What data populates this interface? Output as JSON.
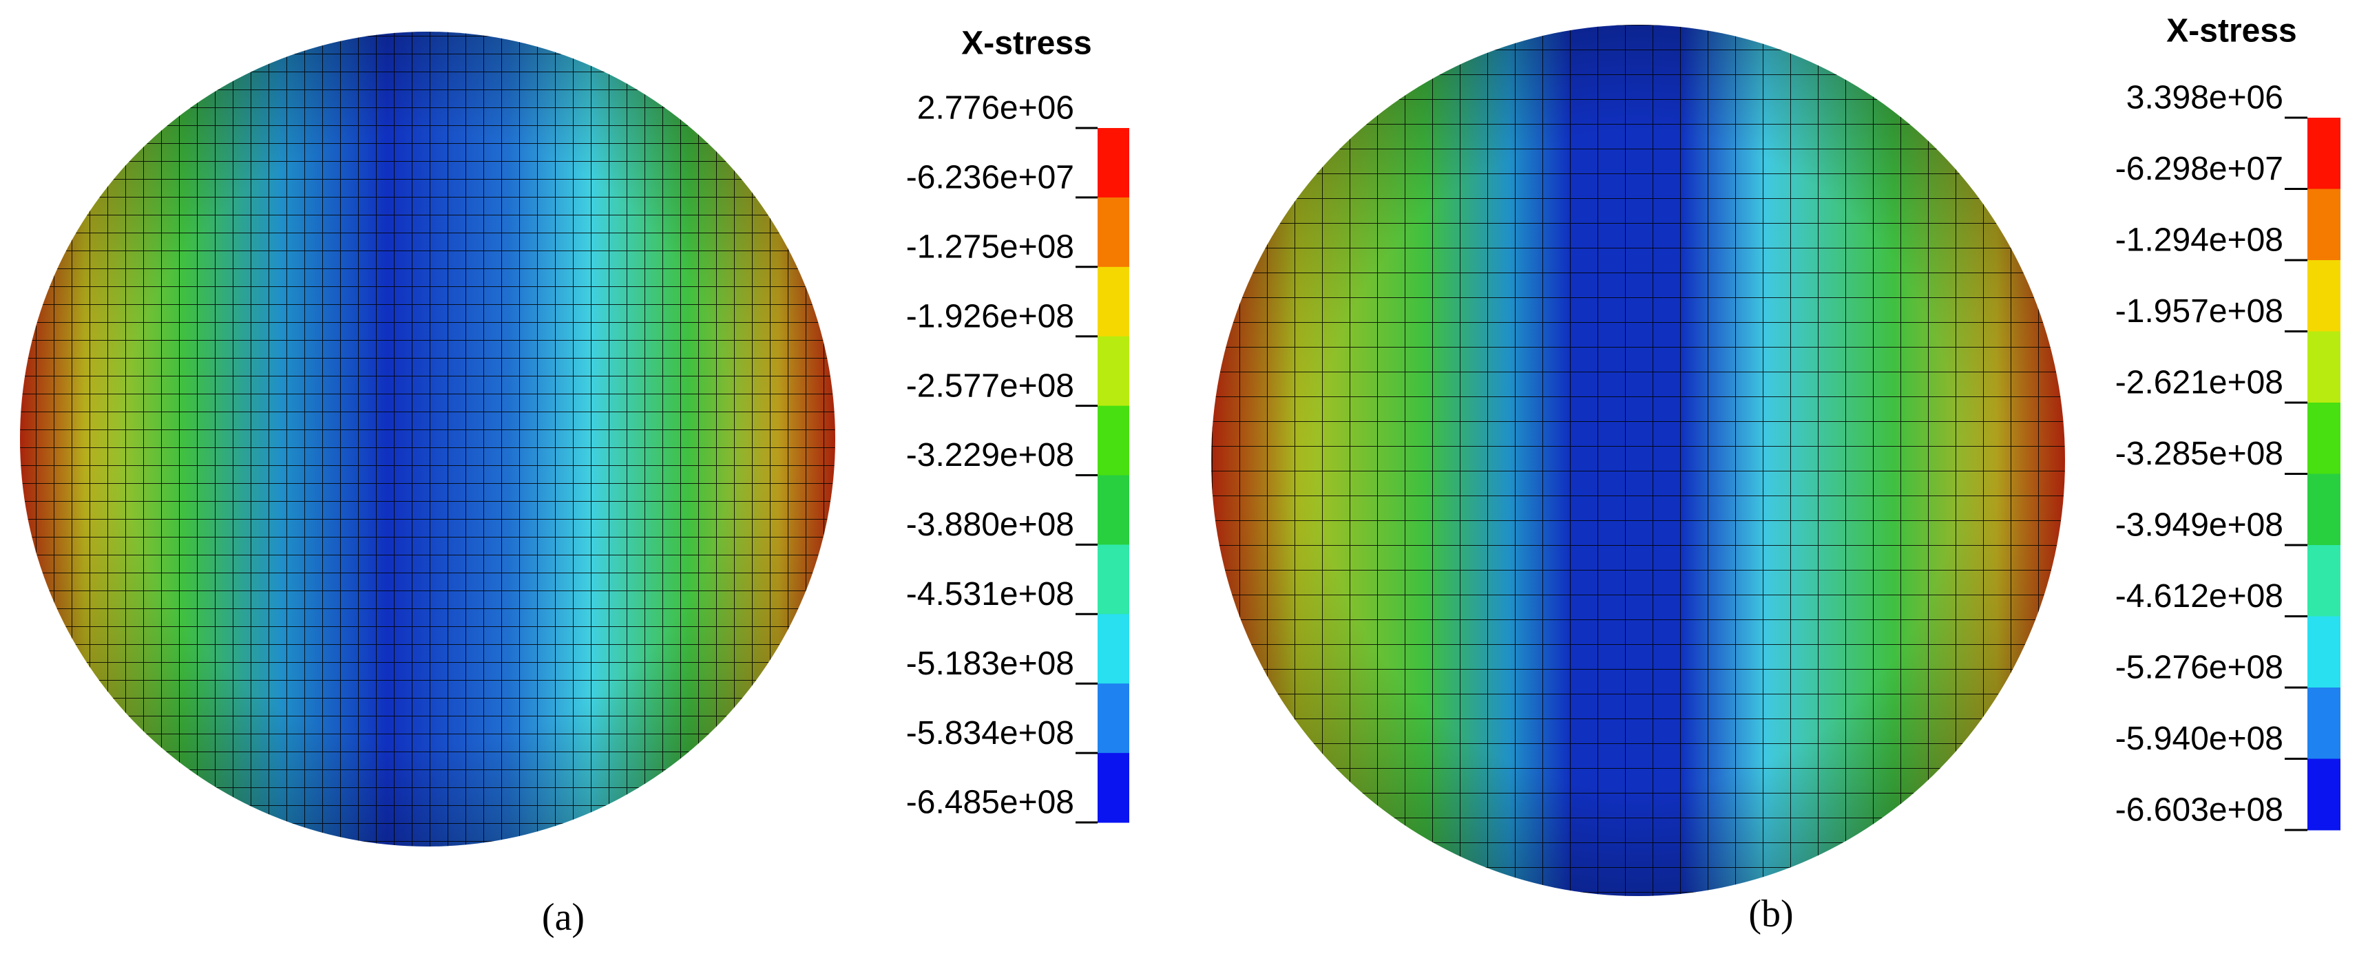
{
  "panels": [
    {
      "legend": {
        "title": "X-stress",
        "labels": [
          "2.776e+06",
          "-6.236e+07",
          "-1.275e+08",
          "-1.926e+08",
          "-2.577e+08",
          "-3.229e+08",
          "-3.880e+08",
          "-4.531e+08",
          "-5.183e+08",
          "-5.834e+08",
          "-6.485e+08"
        ],
        "colors": [
          "#ff1200",
          "#f57a00",
          "#f5d800",
          "#b8ec10",
          "#48e010",
          "#28d040",
          "#30e8a8",
          "#28e0f0",
          "#1e82f0",
          "#0a14f0"
        ]
      },
      "caption": "(a)"
    },
    {
      "legend": {
        "title": "X-stress",
        "labels": [
          "3.398e+06",
          "-6.298e+07",
          "-1.294e+08",
          "-1.957e+08",
          "-2.621e+08",
          "-3.285e+08",
          "-3.949e+08",
          "-4.612e+08",
          "-5.276e+08",
          "-5.940e+08",
          "-6.603e+08"
        ],
        "colors": [
          "#ff1200",
          "#f57a00",
          "#f5d800",
          "#b8ec10",
          "#48e010",
          "#28d040",
          "#30e8a8",
          "#28e0f0",
          "#1e82f0",
          "#0a14f0"
        ]
      },
      "caption": "(b)"
    }
  ]
}
